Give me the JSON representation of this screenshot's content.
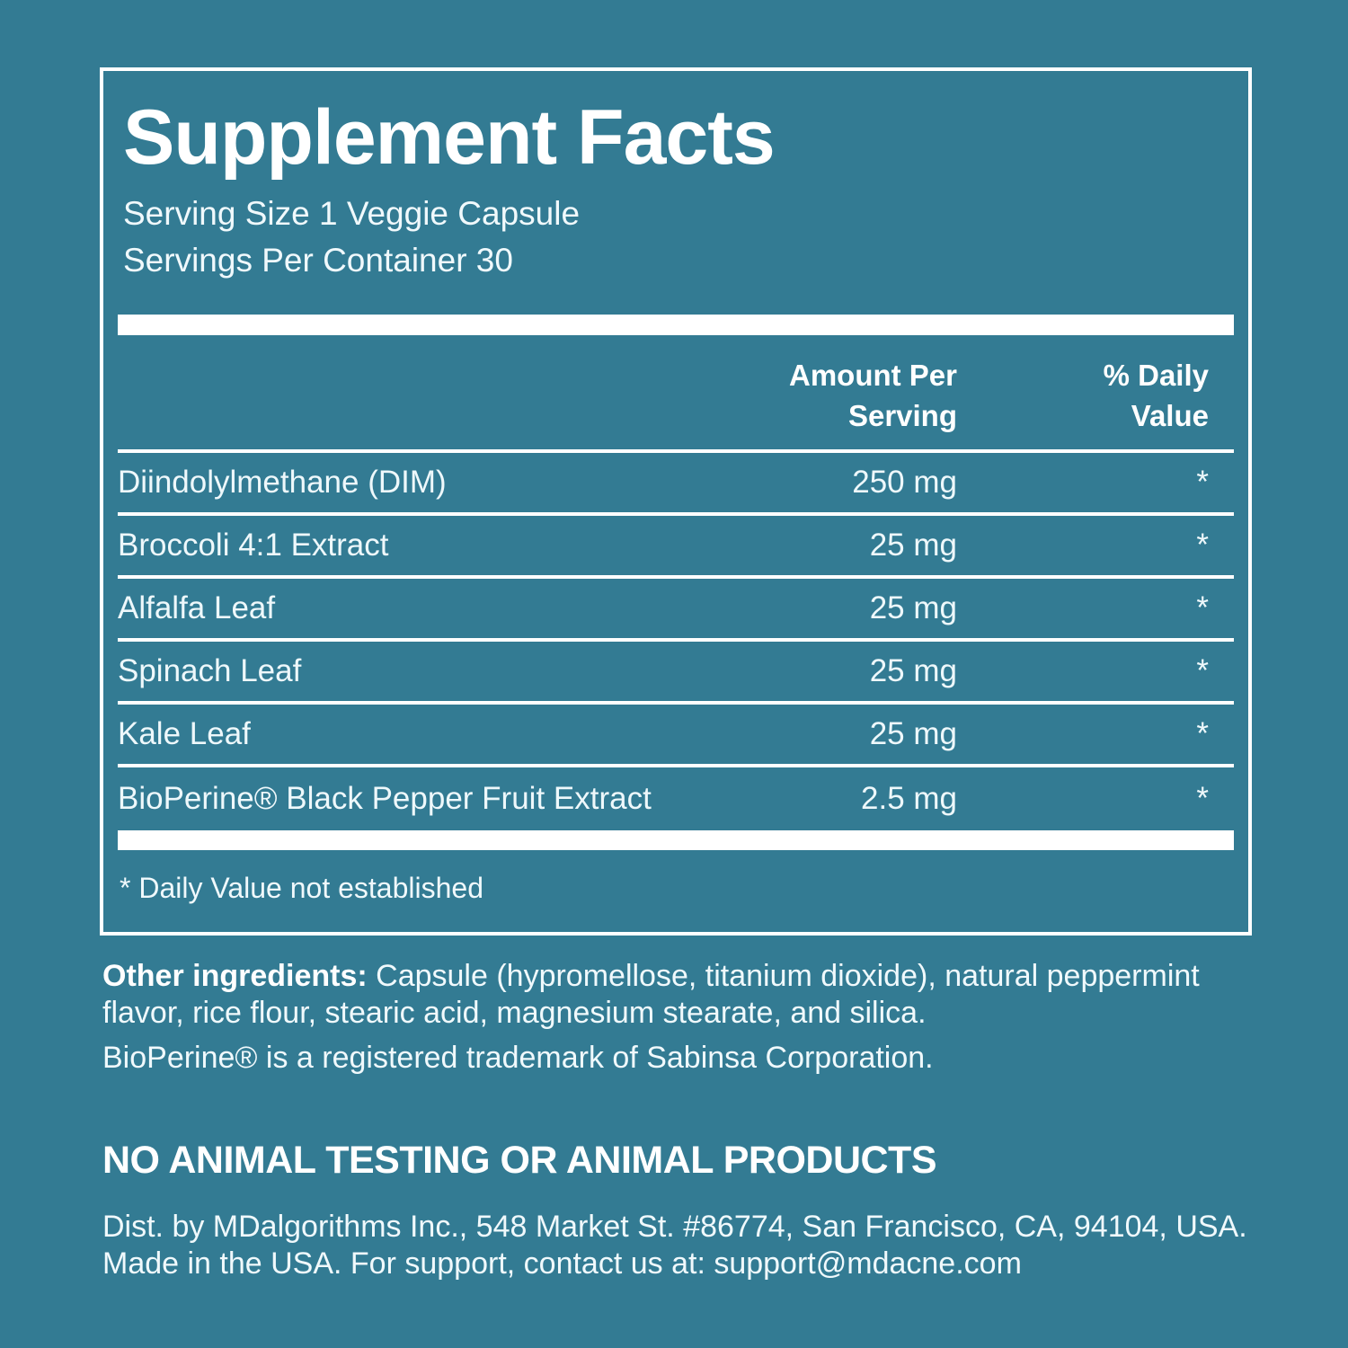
{
  "colors": {
    "background": "#337b93",
    "text": "#ffffff"
  },
  "facts_panel": {
    "title": "Supplement Facts",
    "serving_size": "Serving Size 1 Veggie Capsule",
    "servings_per_container": "Servings Per Container 30",
    "header": {
      "amount_lines": [
        "Amount Per",
        "Serving"
      ],
      "daily_value_lines": [
        "% Daily",
        "Value"
      ]
    },
    "rows": [
      {
        "name": "Diindolylmethane (DIM)",
        "amount": "250 mg",
        "daily_value": "*"
      },
      {
        "name": "Broccoli 4:1 Extract",
        "amount": "25 mg",
        "daily_value": "*"
      },
      {
        "name": "Alfalfa Leaf",
        "amount": "25 mg",
        "daily_value": "*"
      },
      {
        "name": "Spinach Leaf",
        "amount": "25 mg",
        "daily_value": "*"
      },
      {
        "name": "Kale Leaf",
        "amount": "25 mg",
        "daily_value": "*"
      },
      {
        "name": "BioPerine® Black Pepper Fruit Extract",
        "amount": "2.5 mg",
        "daily_value": "*"
      }
    ],
    "footnote": "* Daily Value not established"
  },
  "other_info": {
    "other_ingredients_label": "Other ingredients:",
    "other_ingredients_text": " Capsule (hypromellose, titanium dioxide), natural peppermint flavor, rice flour, stearic acid, magnesium stearate, and silica.",
    "trademark_note": "BioPerine® is a registered trademark of Sabinsa Corporation.",
    "no_animal_statement": "NO ANIMAL TESTING OR ANIMAL PRODUCTS",
    "distributor_line1": "Dist. by MDalgorithms Inc., 548 Market St. #86774, San Francisco, CA, 94104, USA.",
    "distributor_line2": "Made in the USA. For support, contact us at: support@mdacne.com"
  }
}
